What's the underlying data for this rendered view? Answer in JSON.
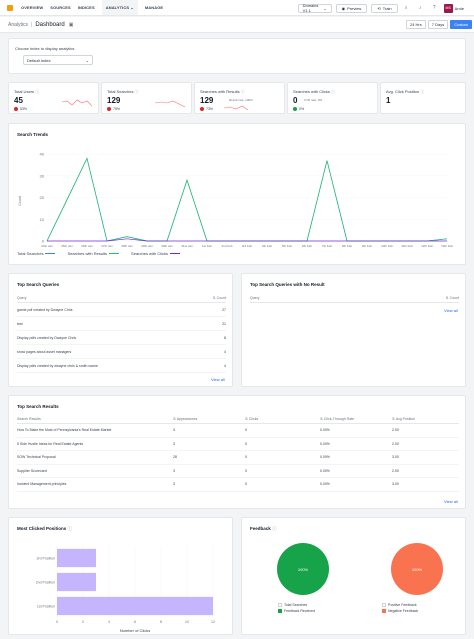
{
  "nav": {
    "items": [
      "OVERVIEW",
      "SOURCES",
      "INDICES",
      "ANALYTICS",
      "MANAGE"
    ],
    "active_suffix": "⌄",
    "workspace": "Domains V1.1",
    "preview": "Preview",
    "train": "Train",
    "user_initials": "MS",
    "user_name": "Arole"
  },
  "breadcrumb": {
    "parent": "Analytics",
    "separator": "|",
    "current": "Dashboard"
  },
  "range": [
    "24 Hrs",
    "7 Days",
    "Custom"
  ],
  "index_selector": {
    "label": "Choose Index to display analytics",
    "value": "Default Index"
  },
  "stats": [
    {
      "label": "Total Users",
      "value": "45",
      "delta": "53%",
      "dir": "down"
    },
    {
      "label": "Total Searches",
      "value": "129",
      "delta": "75%",
      "dir": "down"
    },
    {
      "label": "Searches with Results",
      "value": "129",
      "extra": "Result rate: 100%",
      "delta": "73%",
      "dir": "down"
    },
    {
      "label": "Searches with Clicks",
      "value": "0",
      "extra": "CTR rate: 0%",
      "delta": "0%",
      "dir": "up"
    },
    {
      "label": "Avg. Click Position",
      "value": "1",
      "delta": "",
      "dir": ""
    }
  ],
  "trends": {
    "title": "Search Trends",
    "ylabel": "Count",
    "legend": [
      "Total Searches",
      "Searches with Results",
      "Searches with Clicks"
    ]
  },
  "chart_data": [
    {
      "type": "line",
      "title": "Search Trends",
      "ylabel": "Count",
      "ylim": [
        0,
        40
      ],
      "yticks": [
        0,
        10,
        20,
        30,
        40
      ],
      "categories": [
        "24th Jan",
        "25th Jan",
        "26th Jan",
        "27th Jan",
        "28th Jan",
        "29th Jan",
        "30th Jan",
        "31st Jan",
        "1st Feb",
        "2nd Feb",
        "3rd Feb",
        "4th Feb",
        "5th Feb",
        "6th Feb",
        "7th Feb",
        "8th Feb",
        "9th Feb",
        "10th Feb",
        "11th Feb",
        "12th Feb",
        "13th Feb"
      ],
      "series": [
        {
          "name": "Total Searches",
          "color": "#3b82f6",
          "values": [
            0,
            19,
            38,
            0,
            2,
            0,
            0,
            28,
            0,
            0,
            0,
            0,
            0,
            0,
            37,
            0,
            0,
            0,
            0,
            0,
            1
          ]
        },
        {
          "name": "Searches with Results",
          "color": "#22c55e",
          "values": [
            0,
            19,
            38,
            0,
            2,
            0,
            0,
            28,
            0,
            0,
            0,
            0,
            0,
            0,
            37,
            0,
            0,
            0,
            0,
            0,
            1
          ]
        },
        {
          "name": "Searches with Clicks",
          "color": "#6d28d9",
          "values": [
            0,
            0,
            0,
            0,
            1,
            0,
            0,
            0,
            0,
            0,
            0,
            0,
            0,
            0,
            0,
            0,
            0,
            0,
            0,
            0,
            0
          ]
        }
      ]
    },
    {
      "type": "bar",
      "orientation": "horizontal",
      "title": "Most Clicked Positions",
      "categories": [
        "3rd Position",
        "2nd Position",
        "1st Position"
      ],
      "values": [
        3,
        3,
        12
      ],
      "xlim": [
        0,
        12
      ],
      "xticks": [
        0,
        2,
        4,
        6,
        8,
        10,
        12
      ],
      "xlabel": "Number of Clicks",
      "color": "#c4b5fd"
    },
    {
      "type": "pie",
      "title": "Total Searches",
      "slices": [
        {
          "label": "Feedback Received",
          "value": 100,
          "color": "#16a34a"
        }
      ]
    },
    {
      "type": "pie",
      "title": "Positive Feedback",
      "slices": [
        {
          "label": "Negative Feedback",
          "value": 100,
          "color": "#f97350"
        }
      ]
    }
  ],
  "top_queries": {
    "title": "Top Search Queries",
    "col_query": "Query",
    "col_count": "Count",
    "rows": [
      {
        "query": "gamie pdf created by Dwayne Chris",
        "count": "27"
      },
      {
        "query": "test",
        "count": "21"
      },
      {
        "query": "Display pdfs created by Dwayne Chris",
        "count": "8"
      },
      {
        "query": "show pages about asset managers",
        "count": "4"
      },
      {
        "query": "Display pdfs created by dwayne chris & smith warne",
        "count": "4"
      }
    ],
    "view_all": "View all"
  },
  "no_result_queries": {
    "title": "Top Search Queries with No Result",
    "col_query": "Query",
    "col_count": "Count",
    "view_all": "View all"
  },
  "top_results": {
    "title": "Top Search Results",
    "cols": [
      "Search Results",
      "Appearances",
      "Clicks",
      "Click-Through Rate",
      "Avg Position"
    ],
    "rows": [
      [
        "How To Make the Most of Pennsylvania's Real Estate Market",
        "3",
        "0",
        "0.00%",
        "2.00"
      ],
      [
        "5 Side Hustle Ideas for Real Estate Agents",
        "3",
        "0",
        "0.00%",
        "2.00"
      ],
      [
        "SOW Technical Proposal",
        "28",
        "0",
        "0.00%",
        "3.00"
      ],
      [
        "Supplier Scorecard",
        "3",
        "0",
        "0.00%",
        "2.00"
      ],
      [
        "Incident Management principles",
        "3",
        "0",
        "0.00%",
        "3.00"
      ]
    ],
    "view_all": "View all"
  },
  "clicked_positions": {
    "title": "Most Clicked Positions",
    "xlabel": "Number of Clicks"
  },
  "feedback": {
    "title": "Feedback",
    "pie1_label": "100%",
    "pie2_label": "100%",
    "legend1": [
      "Total Searches",
      "Feedback Received"
    ],
    "legend2": [
      "Positive Feedback",
      "Negative Feedback"
    ]
  }
}
